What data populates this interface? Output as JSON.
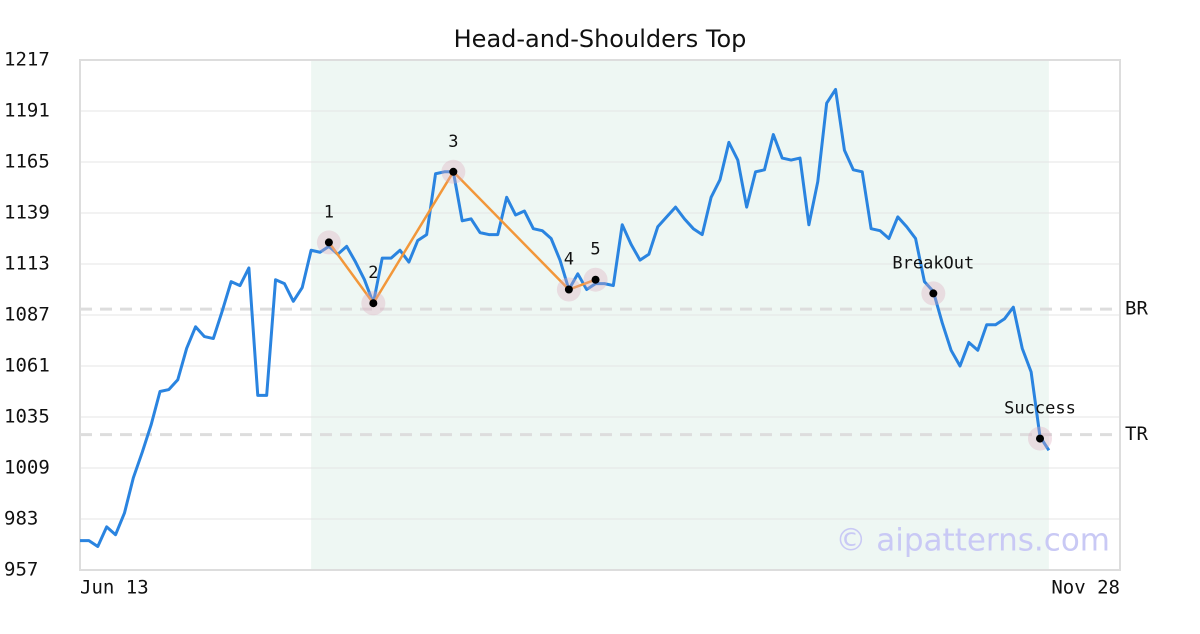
{
  "chart_data": {
    "type": "line",
    "title": "Head-and-Shoulders Top",
    "categories": [
      "Jun 13",
      null,
      null,
      null,
      null,
      null,
      null,
      null,
      null,
      null,
      null,
      null,
      null,
      null,
      null,
      null,
      null,
      null,
      null,
      null,
      null,
      null,
      null,
      null,
      null,
      null,
      null,
      null,
      null,
      null,
      null,
      null,
      null,
      null,
      null,
      null,
      null,
      null,
      null,
      null,
      null,
      null,
      null,
      null,
      null,
      null,
      null,
      null,
      null,
      null,
      null,
      null,
      null,
      null,
      null,
      null,
      null,
      null,
      null,
      null,
      null,
      null,
      null,
      null,
      null,
      null,
      null,
      null,
      null,
      null,
      null,
      null,
      null,
      null,
      null,
      null,
      null,
      null,
      null,
      null,
      null,
      null,
      null,
      null,
      null,
      null,
      null,
      null,
      null,
      null,
      null,
      null,
      null,
      null,
      null,
      null,
      null,
      null,
      null,
      null,
      null,
      null,
      null,
      null,
      null,
      null,
      null,
      null,
      null,
      null,
      null,
      null,
      null,
      null,
      null,
      null,
      null,
      "Nov 28"
    ],
    "series": [
      {
        "color": "#2a84e0",
        "values": [
          972,
          972,
          969,
          979,
          975,
          986,
          1004,
          1017,
          1031,
          1048,
          1049,
          1054,
          1070,
          1081,
          1076,
          1075,
          1089,
          1104,
          1102,
          1111,
          1046,
          1046,
          1105,
          1103,
          1094,
          1101,
          1120,
          1119,
          1122,
          1118,
          1122,
          1114,
          1105,
          1093,
          1116,
          1116,
          1120,
          1114,
          1125,
          1128,
          1159,
          1160,
          1160,
          1135,
          1136,
          1129,
          1128,
          1128,
          1147,
          1138,
          1140,
          1131,
          1130,
          1126,
          1115,
          1100,
          1108,
          1100,
          1103,
          1103,
          1102,
          1133,
          1123,
          1115,
          1118,
          1132,
          1137,
          1142,
          1136,
          1131,
          1128,
          1147,
          1156,
          1175,
          1166,
          1142,
          1160,
          1161,
          1179,
          1167,
          1166,
          1167,
          1133,
          1155,
          1195,
          1202,
          1171,
          1161,
          1160,
          1131,
          1130,
          1126,
          1137,
          1132,
          1126,
          1104,
          1099,
          1083,
          1069,
          1061,
          1073,
          1069,
          1082,
          1082,
          1085,
          1091,
          1070,
          1058,
          1025,
          1018,
          null,
          null,
          null,
          null,
          null,
          null,
          null,
          null
        ]
      }
    ],
    "ylim": [
      957,
      1217
    ],
    "yticks": [
      957,
      983,
      1009,
      1035,
      1061,
      1087,
      1113,
      1139,
      1165,
      1191,
      1217
    ],
    "grid": true,
    "shaded_range": [
      26,
      109
    ],
    "pattern_color": "#f2973a",
    "points": [
      {
        "label": "1",
        "at": 28,
        "value": 1124
      },
      {
        "label": "2",
        "at": 33,
        "value": 1093
      },
      {
        "label": "3",
        "at": 42,
        "value": 1160
      },
      {
        "label": "4",
        "at": 55,
        "value": 1100
      },
      {
        "label": "5",
        "at": 58,
        "value": 1105
      },
      {
        "label": "BreakOut",
        "at": 96,
        "value": 1098
      },
      {
        "label": "Success",
        "at": 108,
        "value": 1024
      }
    ],
    "pattern_points": 5,
    "levels": [
      {
        "label": "BR",
        "value": 1090
      },
      {
        "label": "TR",
        "value": 1026
      }
    ],
    "watermark": "© aipatterns.com"
  }
}
